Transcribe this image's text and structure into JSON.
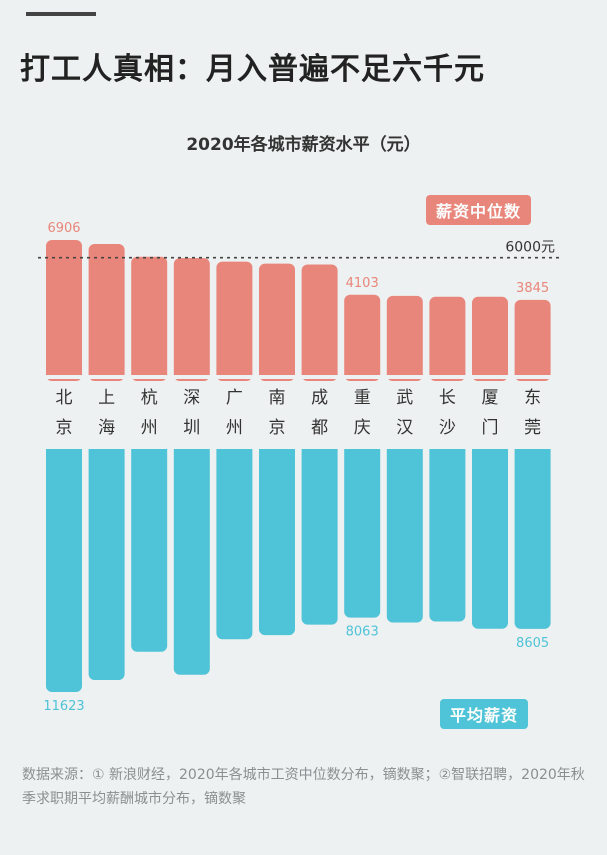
{
  "headline": "打工人真相：月入普遍不足六千元",
  "chart_data": {
    "type": "bar",
    "title": "2020年各城市薪资水平（元）",
    "categories": [
      "北京",
      "上海",
      "杭州",
      "深圳",
      "广州",
      "南京",
      "成都",
      "重庆",
      "武汉",
      "长沙",
      "厦门",
      "东莞"
    ],
    "series": [
      {
        "name": "薪资中位数",
        "color": "#e9867b",
        "values": [
          6906,
          6700,
          6050,
          5980,
          5800,
          5700,
          5650,
          4103,
          4050,
          4000,
          4000,
          3845
        ]
      },
      {
        "name": "平均薪资",
        "color": "#4fc3d8",
        "values": [
          11623,
          11050,
          9700,
          10800,
          9100,
          8900,
          8400,
          8063,
          8300,
          8250,
          8600,
          8605
        ]
      }
    ],
    "reference_line": {
      "value": 6000,
      "label": "6000元"
    },
    "data_labels": [
      {
        "series": 0,
        "index": 0,
        "text": "6906"
      },
      {
        "series": 0,
        "index": 7,
        "text": "4103"
      },
      {
        "series": 0,
        "index": 11,
        "text": "3845"
      },
      {
        "series": 1,
        "index": 0,
        "text": "11623"
      },
      {
        "series": 1,
        "index": 7,
        "text": "8063"
      },
      {
        "series": 1,
        "index": 11,
        "text": "8605"
      }
    ]
  },
  "source_text": "数据来源：① 新浪财经，2020年各城市工资中位数分布，镝数聚；②智联招聘，2020年秋季求职期平均薪酬城市分布，镝数聚"
}
